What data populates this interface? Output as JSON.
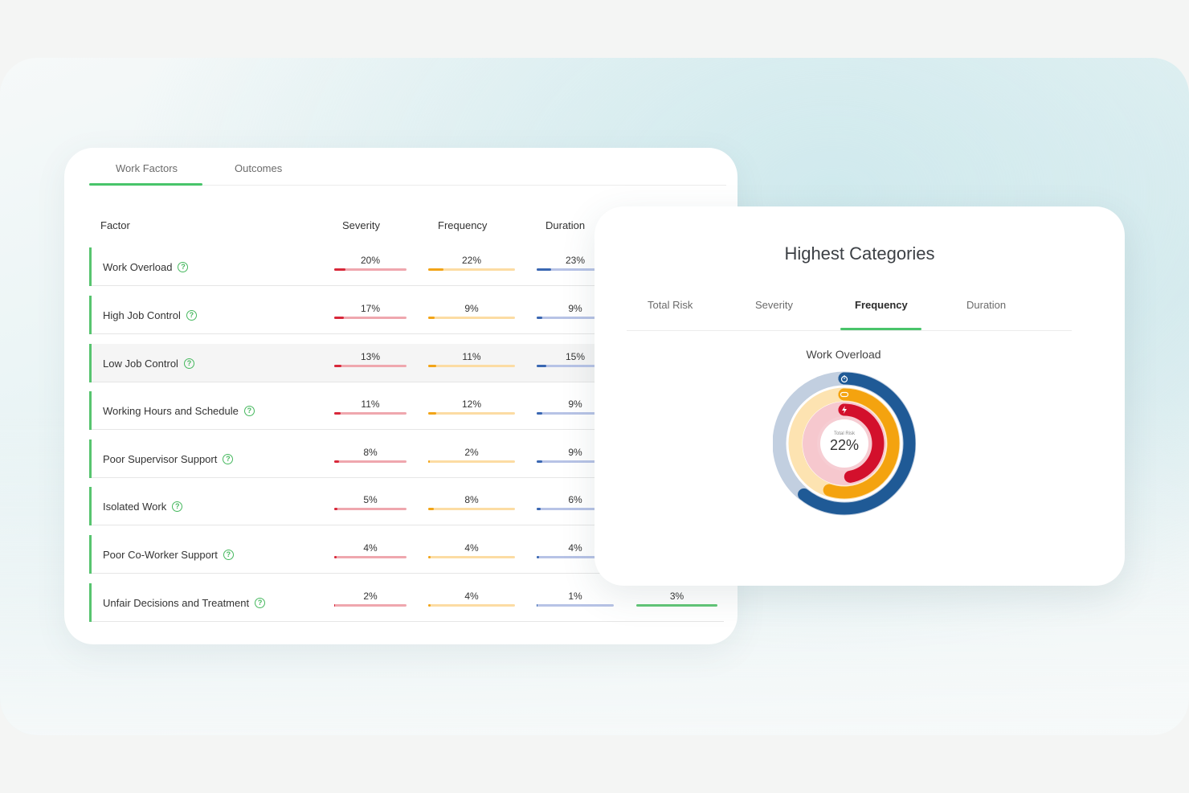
{
  "tabs_left": [
    {
      "label": "Work Factors",
      "active": true
    },
    {
      "label": "Outcomes",
      "active": false
    }
  ],
  "columns": [
    "Factor",
    "Severity",
    "Frequency",
    "Duration"
  ],
  "rows": [
    {
      "factor": "Work Overload",
      "severity": "20%",
      "frequency": "22%",
      "duration": "23%",
      "outcome": ""
    },
    {
      "factor": "High Job Control",
      "severity": "17%",
      "frequency": "9%",
      "duration": "9%",
      "outcome": ""
    },
    {
      "factor": "Low Job Control",
      "severity": "13%",
      "frequency": "11%",
      "duration": "15%",
      "outcome": ""
    },
    {
      "factor": "Working Hours and Schedule",
      "severity": "11%",
      "frequency": "12%",
      "duration": "9%",
      "outcome": ""
    },
    {
      "factor": "Poor Supervisor Support",
      "severity": "8%",
      "frequency": "2%",
      "duration": "9%",
      "outcome": ""
    },
    {
      "factor": "Isolated Work",
      "severity": "5%",
      "frequency": "8%",
      "duration": "6%",
      "outcome": ""
    },
    {
      "factor": "Poor Co-Worker Support",
      "severity": "4%",
      "frequency": "4%",
      "duration": "4%",
      "outcome": ""
    },
    {
      "factor": "Unfair Decisions and Treatment",
      "severity": "2%",
      "frequency": "4%",
      "duration": "1%",
      "outcome": "3%"
    }
  ],
  "categories_panel": {
    "title": "Highest Categories",
    "tabs": [
      {
        "label": "Total Risk",
        "active": false
      },
      {
        "label": "Severity",
        "active": false
      },
      {
        "label": "Frequency",
        "active": true
      },
      {
        "label": "Duration",
        "active": false
      }
    ],
    "selected_factor": "Work Overload",
    "center_label": "Total Risk",
    "center_value": "22%"
  },
  "chart_data": {
    "type": "radial-bar",
    "center_label": "Total Risk",
    "center_value": "22%",
    "rings": [
      {
        "icon": "stopwatch-icon",
        "value": 23,
        "color": "#1f5a96",
        "track_color": "#c2cfe0"
      },
      {
        "icon": "repeat-icon",
        "value": 22,
        "color": "#f4a30f",
        "track_color": "#fde3b1"
      },
      {
        "icon": "lightning-icon",
        "value": 20,
        "color": "#d3102c",
        "track_color": "#f6c8ce"
      }
    ]
  },
  "colors": {
    "accent": "#48c46a",
    "severity": "#d8283a",
    "frequency": "#f2a417",
    "duration": "#3a67b2"
  }
}
